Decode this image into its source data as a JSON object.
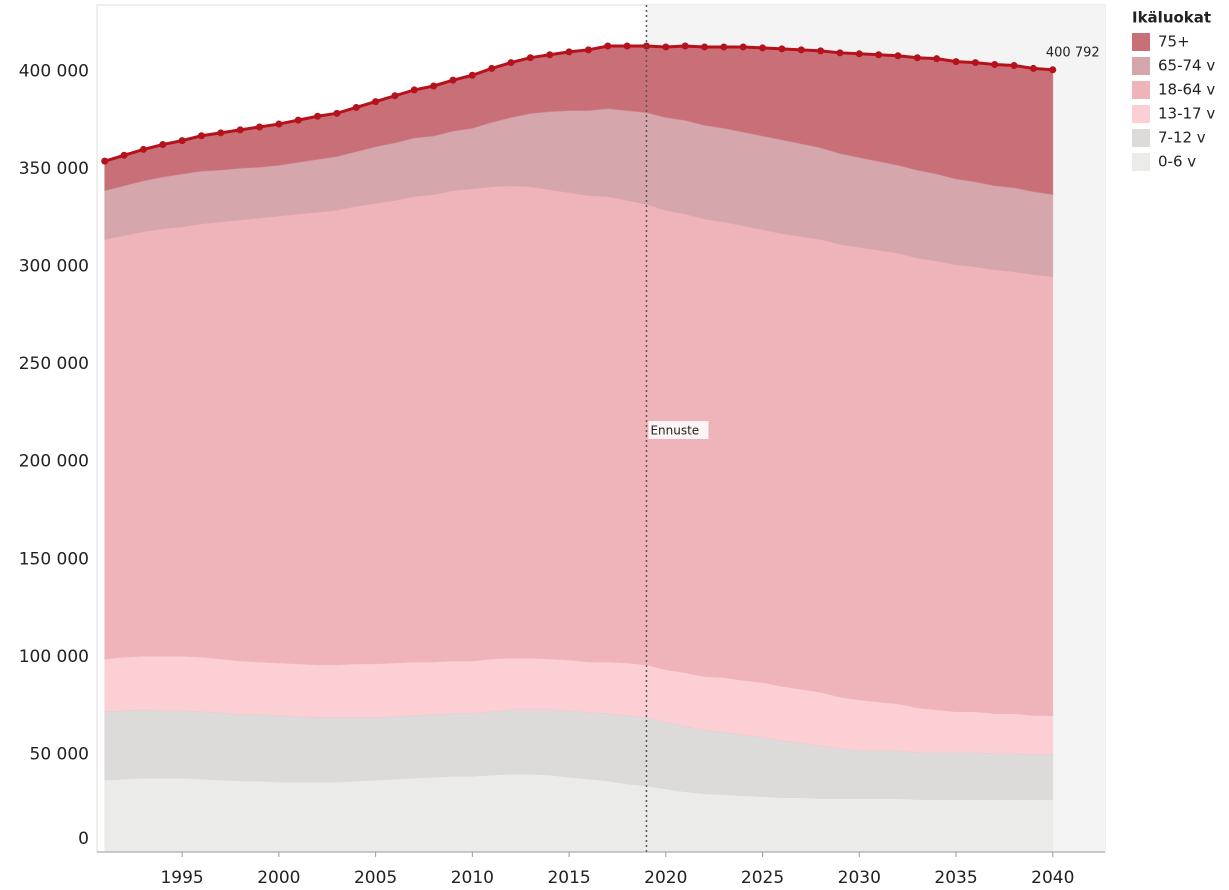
{
  "chart_data": {
    "type": "stacked_area",
    "x": [
      1991,
      1992,
      1993,
      1994,
      1995,
      1996,
      1997,
      1998,
      1999,
      2000,
      2001,
      2002,
      2003,
      2004,
      2005,
      2006,
      2007,
      2008,
      2009,
      2010,
      2011,
      2012,
      2013,
      2014,
      2015,
      2016,
      2017,
      2018,
      2019,
      2020,
      2021,
      2022,
      2023,
      2024,
      2025,
      2026,
      2027,
      2028,
      2029,
      2030,
      2031,
      2032,
      2033,
      2034,
      2035,
      2036,
      2037,
      2038,
      2039,
      2040
    ],
    "legend_title": "Ikäluokat",
    "legend": "right",
    "series": [
      {
        "name": "75+",
        "color": "#c96f78",
        "values": [
          15000,
          15500,
          16000,
          16500,
          17000,
          18000,
          19000,
          19500,
          20500,
          21000,
          21500,
          22000,
          22000,
          22500,
          23000,
          24000,
          24500,
          25500,
          26000,
          27000,
          27500,
          28000,
          28500,
          29000,
          30000,
          31000,
          32000,
          33000,
          34000,
          36000,
          38000,
          40000,
          41500,
          43500,
          45000,
          46500,
          48000,
          49500,
          51500,
          53000,
          54500,
          56000,
          57500,
          59000,
          60000,
          61000,
          62000,
          62500,
          63000,
          63792
        ]
      },
      {
        "name": "65-74 v",
        "color": "#d5a6ac",
        "values": [
          25000,
          25500,
          26000,
          26500,
          27000,
          27000,
          26500,
          26500,
          26000,
          26000,
          26500,
          27000,
          27500,
          28000,
          29000,
          29500,
          30000,
          30000,
          30500,
          31000,
          33000,
          35000,
          37500,
          40000,
          42000,
          43500,
          45000,
          46000,
          47000,
          47500,
          48000,
          48000,
          48000,
          48000,
          48000,
          48000,
          47500,
          47000,
          46500,
          46000,
          45500,
          45000,
          45000,
          44500,
          44000,
          43500,
          43000,
          43000,
          42500,
          42000
        ]
      },
      {
        "name": "18-64 v",
        "color": "#efb4ba",
        "values": [
          215000,
          216000,
          217500,
          219000,
          220000,
          222000,
          224000,
          226000,
          227500,
          229000,
          230500,
          232000,
          233000,
          234500,
          236000,
          237000,
          238500,
          239500,
          241000,
          242000,
          242000,
          242000,
          241500,
          240500,
          239500,
          239000,
          238500,
          237000,
          236000,
          235500,
          235000,
          234500,
          233500,
          233000,
          232000,
          232000,
          232000,
          232000,
          232000,
          232000,
          231500,
          231000,
          230500,
          230000,
          229000,
          228000,
          227500,
          226500,
          226000,
          225000
        ]
      },
      {
        "name": "13-17 v",
        "color": "#fccfd4",
        "values": [
          27000,
          27500,
          27500,
          28000,
          28000,
          28000,
          27500,
          27500,
          27000,
          27000,
          27000,
          27000,
          27000,
          27500,
          27500,
          27500,
          27500,
          27000,
          27000,
          27000,
          27000,
          26500,
          26500,
          26000,
          26000,
          26000,
          26500,
          27000,
          27000,
          27000,
          27500,
          27500,
          28000,
          28000,
          28000,
          28000,
          27500,
          27500,
          26500,
          26000,
          25000,
          24000,
          23000,
          22000,
          21000,
          21000,
          20500,
          20500,
          20000,
          20000
        ]
      },
      {
        "name": "7-12 v",
        "color": "#dcdbda",
        "values": [
          35000,
          35000,
          35000,
          34500,
          34500,
          34500,
          34500,
          34000,
          34000,
          34000,
          33500,
          33000,
          33000,
          32500,
          32000,
          32000,
          32000,
          32000,
          32000,
          32000,
          32500,
          33000,
          33000,
          33500,
          34000,
          34000,
          34500,
          35000,
          35000,
          34000,
          33500,
          32500,
          32000,
          31000,
          30500,
          29000,
          28000,
          27000,
          25500,
          24500,
          24500,
          24500,
          24000,
          24000,
          24000,
          24000,
          23500,
          23500,
          23000,
          23000
        ]
      },
      {
        "name": "0-6 v",
        "color": "#ebebea",
        "values": [
          37000,
          37500,
          38000,
          38000,
          38000,
          37500,
          37000,
          36500,
          36500,
          36000,
          36000,
          36000,
          36000,
          36500,
          37000,
          37500,
          38000,
          38500,
          39000,
          39000,
          39500,
          40000,
          40000,
          39500,
          38500,
          37500,
          36500,
          35000,
          34000,
          32500,
          31000,
          30000,
          29500,
          29000,
          28500,
          28000,
          28000,
          27500,
          27500,
          27500,
          27500,
          27500,
          27000,
          27000,
          27000,
          27000,
          27000,
          27000,
          27000,
          27000
        ]
      }
    ],
    "total_line_color": "#b5121b",
    "end_label": "400 792",
    "forecast_start": 2019,
    "forecast_label": "Ennuste",
    "xlim": [
      1990.6,
      2042.7
    ],
    "xticks": [
      1995,
      2000,
      2005,
      2010,
      2015,
      2020,
      2025,
      2030,
      2035,
      2040
    ],
    "ylim": [
      0,
      434000
    ],
    "yticks": [
      0,
      {
        "value": 50000,
        "label": "50 000"
      },
      {
        "value": 100000,
        "label": "100 000"
      },
      {
        "value": 150000,
        "label": "150 000"
      },
      {
        "value": 200000,
        "label": "200 000"
      },
      {
        "value": 250000,
        "label": "250 000"
      },
      {
        "value": 300000,
        "label": "300 000"
      },
      {
        "value": 350000,
        "label": "350 000"
      },
      {
        "value": 400000,
        "label": "400 000"
      }
    ],
    "grid": false
  }
}
